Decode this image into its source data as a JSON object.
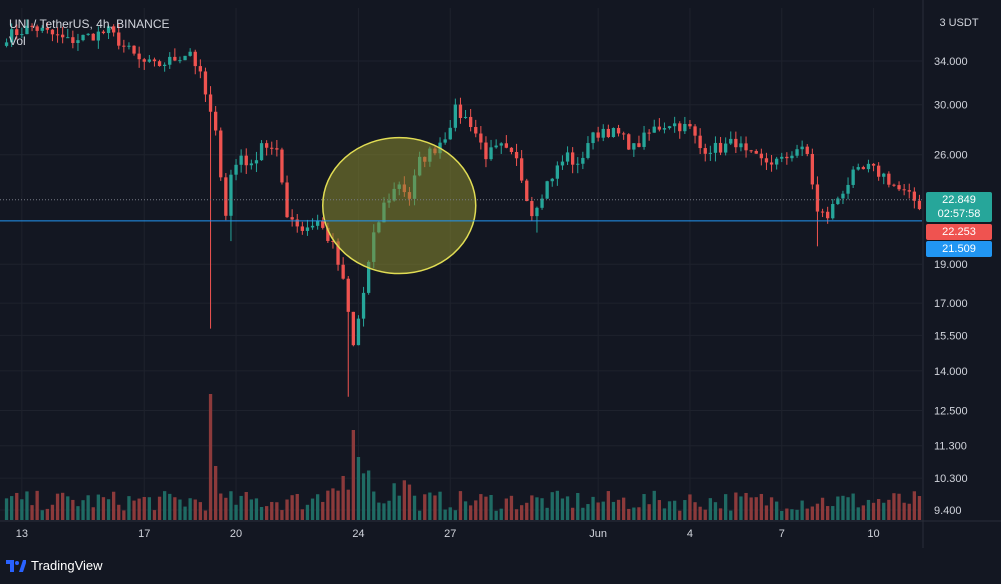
{
  "legend": {
    "symbol": "UNI / TetherUS, 4h, BINANCE",
    "volume_label": "Vol"
  },
  "currency_label": "3 USDT",
  "colors": {
    "background": "#131722",
    "grid": "#1e222d",
    "up": "#26a69a",
    "down": "#ef5350",
    "up_volume": "#1f6b64",
    "down_volume": "#8c3a3b",
    "ellipse_fill": "#8a8a2e",
    "ellipse_stroke": "#e0dc54",
    "hline": "#2196f3"
  },
  "badges": {
    "last_price": "22.849",
    "countdown": "02:57:58",
    "close_price": "22.253",
    "line_price": "21.509"
  },
  "brand": "TradingView",
  "chart_data": {
    "type": "candlestick",
    "symbol": "UNI/USDT",
    "interval": "4h",
    "exchange": "BINANCE",
    "y_scale": "log",
    "y_ticks": [
      34.0,
      30.0,
      26.0,
      22.849,
      19.0,
      17.0,
      15.5,
      14.0,
      12.5,
      11.3,
      10.3,
      9.4
    ],
    "y_tick_labels": [
      "34.000",
      "30.000",
      "26.000",
      "22.849",
      "19.000",
      "17.000",
      "15.500",
      "14.000",
      "12.500",
      "11.300",
      "10.300",
      "9.400"
    ],
    "x_ticks": [
      {
        "label": "13",
        "index": 3
      },
      {
        "label": "17",
        "index": 27
      },
      {
        "label": "20",
        "index": 45
      },
      {
        "label": "24",
        "index": 69
      },
      {
        "label": "27",
        "index": 87
      },
      {
        "label": "Jun",
        "index": 116
      },
      {
        "label": "4",
        "index": 134
      },
      {
        "label": "7",
        "index": 152
      },
      {
        "label": "10",
        "index": 170
      }
    ],
    "horizontal_line": 21.509,
    "last_price": 22.849,
    "annotation": {
      "type": "ellipse",
      "from_index": 62,
      "to_index": 92,
      "price_top": 27.3,
      "price_bottom": 18.5
    },
    "anchors": [
      [
        0,
        36.5
      ],
      [
        5,
        37.5
      ],
      [
        12,
        36.0
      ],
      [
        20,
        37.0
      ],
      [
        26,
        34.0
      ],
      [
        29,
        33.5
      ],
      [
        32,
        34.0
      ],
      [
        36,
        35.0
      ],
      [
        38,
        32.5
      ],
      [
        41,
        27.5
      ],
      [
        43,
        22.0
      ],
      [
        44,
        24.5
      ],
      [
        46,
        26.0
      ],
      [
        48,
        25.0
      ],
      [
        50,
        27.0
      ],
      [
        53,
        26.0
      ],
      [
        55,
        22.0
      ],
      [
        58,
        21.0
      ],
      [
        61,
        21.5
      ],
      [
        64,
        20.0
      ],
      [
        66,
        18.0
      ],
      [
        68,
        15.0
      ],
      [
        70,
        17.5
      ],
      [
        72,
        20.5
      ],
      [
        74,
        22.5
      ],
      [
        77,
        24.0
      ],
      [
        79,
        23.0
      ],
      [
        81,
        25.5
      ],
      [
        84,
        26.5
      ],
      [
        86,
        27.5
      ],
      [
        88,
        29.5
      ],
      [
        91,
        28.5
      ],
      [
        94,
        26.0
      ],
      [
        97,
        26.5
      ],
      [
        100,
        25.5
      ],
      [
        103,
        22.0
      ],
      [
        106,
        24.0
      ],
      [
        110,
        26.0
      ],
      [
        112,
        25.0
      ],
      [
        114,
        27.0
      ],
      [
        117,
        28.0
      ],
      [
        120,
        27.5
      ],
      [
        123,
        26.5
      ],
      [
        127,
        28.0
      ],
      [
        130,
        28.5
      ],
      [
        134,
        28.0
      ],
      [
        136,
        26.5
      ],
      [
        140,
        26.5
      ],
      [
        143,
        27.0
      ],
      [
        145,
        26.0
      ],
      [
        148,
        25.5
      ],
      [
        152,
        25.5
      ],
      [
        155,
        26.5
      ],
      [
        157,
        26.0
      ],
      [
        159,
        22.0
      ],
      [
        161,
        21.8
      ],
      [
        163,
        23.0
      ],
      [
        166,
        24.5
      ],
      [
        169,
        25.0
      ],
      [
        172,
        24.5
      ],
      [
        175,
        23.5
      ],
      [
        178,
        22.8
      ],
      [
        179,
        22.25
      ]
    ],
    "candle_count": 180,
    "volume_spikes": [
      {
        "index": 40,
        "value": 2.8
      },
      {
        "index": 68,
        "value": 2.0
      },
      {
        "index": 41,
        "value": 1.2
      },
      {
        "index": 69,
        "value": 1.4
      },
      {
        "index": 71,
        "value": 1.1
      }
    ]
  }
}
